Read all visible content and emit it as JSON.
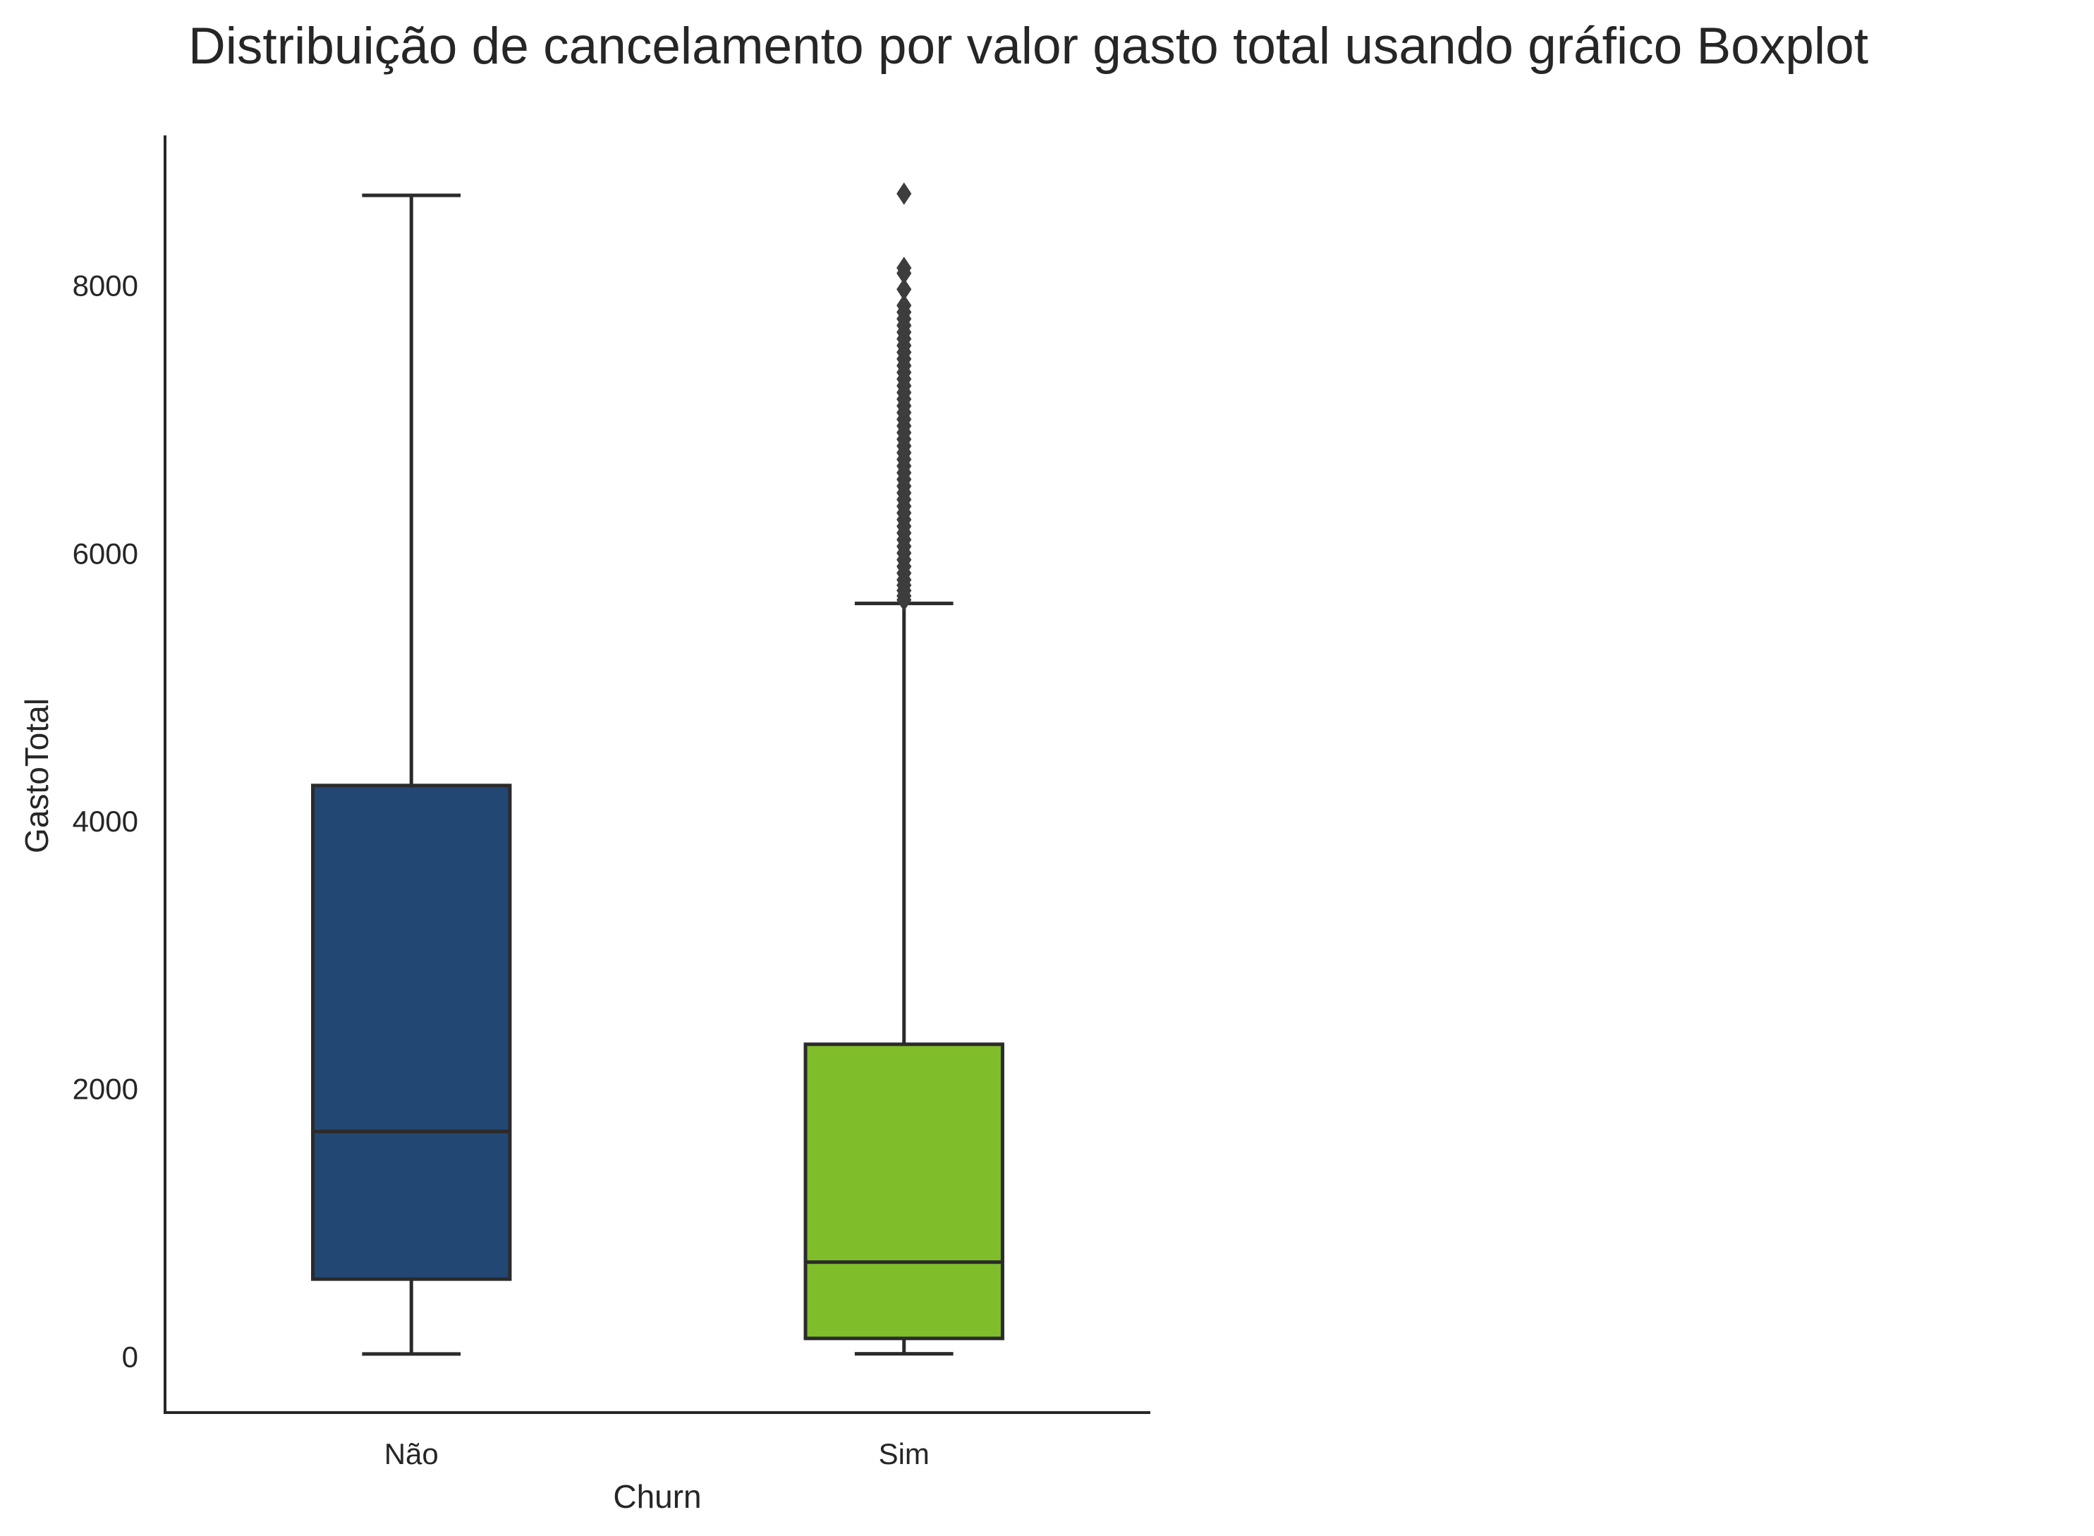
{
  "chart_data": {
    "type": "boxplot",
    "title": "Distribuição de cancelamento por valor gasto total usando gráfico Boxplot",
    "xlabel": "Churn",
    "ylabel": "GastoTotal",
    "ylim": [
      -420,
      9120
    ],
    "yticks": [
      0,
      2000,
      4000,
      6000,
      8000
    ],
    "grid": false,
    "categories": [
      "Não",
      "Sim"
    ],
    "boxes": [
      {
        "category": "Não",
        "color": "#234773",
        "whisker_low": 18,
        "q1": 577,
        "median": 1680,
        "q3": 4264,
        "whisker_high": 8672,
        "outliers": []
      },
      {
        "category": "Sim",
        "color": "#80bd2b",
        "whisker_low": 19,
        "q1": 134,
        "median": 704,
        "q3": 2331,
        "whisker_high": 5624,
        "outliers": [
          5650,
          5680,
          5720,
          5760,
          5800,
          5850,
          5900,
          5950,
          6000,
          6050,
          6100,
          6150,
          6200,
          6250,
          6300,
          6350,
          6400,
          6450,
          6500,
          6550,
          6600,
          6650,
          6700,
          6750,
          6800,
          6850,
          6900,
          6950,
          7000,
          7050,
          7100,
          7150,
          7200,
          7250,
          7300,
          7350,
          7400,
          7450,
          7500,
          7550,
          7600,
          7650,
          7700,
          7750,
          7800,
          7850,
          7970,
          8090,
          8130,
          8685
        ]
      }
    ]
  }
}
